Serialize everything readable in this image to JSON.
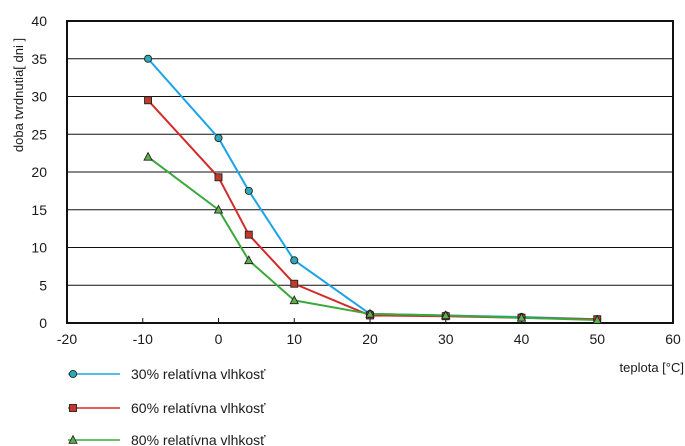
{
  "chart_data": {
    "type": "line",
    "xlabel": "teplota [°C]",
    "ylabel": "doba tvrdnutia[ dni ]",
    "xlim": [
      -20,
      60
    ],
    "ylim": [
      0,
      40
    ],
    "xticks": [
      "-20",
      "-10",
      "0",
      "10",
      "20",
      "30",
      "40",
      "50",
      "60"
    ],
    "yticks": [
      "0",
      "5",
      "10",
      "15",
      "20",
      "25",
      "30",
      "35",
      "40"
    ],
    "grid": "horizontal",
    "legend_position": "bottom-left",
    "series": [
      {
        "name": "30% relatívna vlhkosť",
        "color": "#1aa3e8",
        "marker": "circle",
        "marker_fill": "#2fa8b8",
        "x": [
          -9.3,
          0,
          4,
          10,
          20,
          30,
          40,
          50
        ],
        "y": [
          35,
          24.5,
          17.5,
          8.3,
          1.2,
          1.0,
          0.8,
          0.5
        ]
      },
      {
        "name": "60% relatívna vlhkosť",
        "color": "#d42a2a",
        "marker": "square",
        "marker_fill": "#c0392b",
        "x": [
          -9.3,
          0,
          4,
          10,
          20,
          30,
          40,
          50
        ],
        "y": [
          29.5,
          19.3,
          11.7,
          5.2,
          1.0,
          0.9,
          0.7,
          0.5
        ]
      },
      {
        "name": "80% relatívna vlhkosť",
        "color": "#3aa83a",
        "marker": "triangle",
        "marker_fill": "#5fae4f",
        "x": [
          -9.3,
          0,
          4,
          10,
          20,
          30,
          40,
          50
        ],
        "y": [
          22,
          15,
          8.3,
          3.0,
          1.2,
          1.0,
          0.7,
          0.4
        ]
      }
    ]
  }
}
